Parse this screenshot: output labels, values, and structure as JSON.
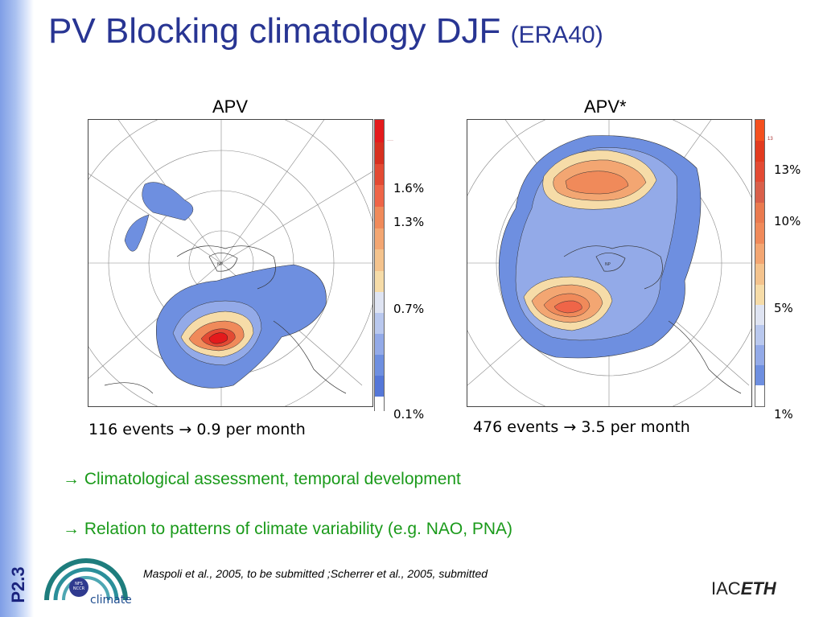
{
  "slide": {
    "side_label": "P2.3",
    "title": "PV Blocking climatology DJF",
    "title_suffix": "(ERA40)"
  },
  "panels": [
    {
      "title": "APV",
      "colorbar_labels": [
        "1.6%",
        "1.3%",
        "0.7%",
        "0.1%"
      ],
      "colorbar_top_note": "····",
      "events_text": "116 events → 0.9 per month"
    },
    {
      "title": "APV*",
      "colorbar_labels": [
        "13%",
        "10%",
        "5%",
        "1%"
      ],
      "colorbar_top_note": "13",
      "events_text": "476 events → 3.5 per month"
    }
  ],
  "bullets": [
    "→ Climatological assessment, temporal development",
    "→ Relation to patterns of climate variability (e.g. NAO, PNA)"
  ],
  "reference": "Maspoli et al., 2005, to be submitted ;Scherrer et al., 2005, submitted",
  "logos": {
    "nccr_badge": "NFS NCCR",
    "nccr_word": "climate",
    "iac_prefix": "IAC",
    "iac_suffix": "ETH"
  },
  "colors": {
    "title": "#283593",
    "bullets": "#1a9a1a",
    "colorbar": [
      "#e41a1c",
      "#d7301f",
      "#e34a33",
      "#ef6548",
      "#f08a5a",
      "#f3a672",
      "#f4c38d",
      "#f6dca8",
      "#dfe4f2",
      "#b9c8ee",
      "#93aae8",
      "#6e8fe0",
      "#5577d8",
      "#ffffff"
    ]
  }
}
